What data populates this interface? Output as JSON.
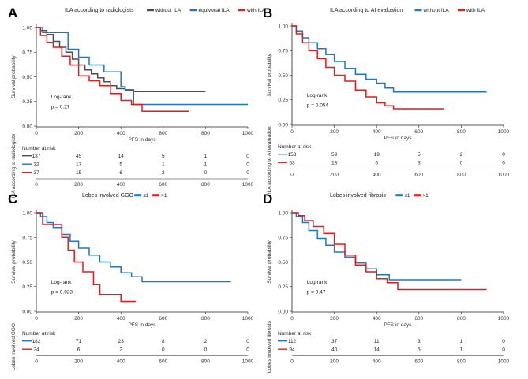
{
  "colors": {
    "gray": "#4d4d4d",
    "blue": "#1f77c4",
    "red": "#e41a1c",
    "axis": "#222222"
  },
  "chart_data": [
    {
      "panel": "A",
      "type": "line",
      "title": "ILA according to radiologists",
      "legend_position": "top",
      "xlabel": "PFS in days",
      "ylabel": "Survival probability",
      "xlim": [
        0,
        1000
      ],
      "ylim": [
        0,
        1
      ],
      "xticks": [
        "0",
        "200",
        "400",
        "600",
        "800",
        "1000"
      ],
      "yticks": [
        "0.00",
        "0.25",
        "0.50",
        "0.75",
        "1.00"
      ],
      "annotations": [
        "Log-rank",
        "p = 0.27"
      ],
      "series": [
        {
          "name": "without ILA",
          "color": "#4d4d4d",
          "x": [
            0,
            20,
            50,
            80,
            110,
            140,
            170,
            200,
            230,
            260,
            290,
            320,
            350,
            380,
            420,
            460,
            520,
            600,
            700,
            800
          ],
          "y": [
            1.0,
            0.97,
            0.93,
            0.86,
            0.8,
            0.75,
            0.68,
            0.62,
            0.57,
            0.53,
            0.49,
            0.45,
            0.41,
            0.38,
            0.36,
            0.35,
            0.35,
            0.35,
            0.35,
            0.35
          ]
        },
        {
          "name": "equivocal ILA",
          "color": "#1f77c4",
          "x": [
            0,
            30,
            60,
            120,
            150,
            200,
            250,
            320,
            400,
            420,
            460,
            600,
            800,
            1000
          ],
          "y": [
            1.0,
            0.95,
            0.95,
            0.95,
            0.78,
            0.7,
            0.62,
            0.55,
            0.4,
            0.37,
            0.22,
            0.22,
            0.22,
            0.22
          ]
        },
        {
          "name": "with ILA",
          "color": "#e41a1c",
          "x": [
            0,
            20,
            50,
            80,
            120,
            160,
            200,
            250,
            300,
            350,
            400,
            450,
            500,
            600,
            720
          ],
          "y": [
            1.0,
            0.92,
            0.85,
            0.8,
            0.71,
            0.62,
            0.51,
            0.46,
            0.41,
            0.33,
            0.26,
            0.22,
            0.15,
            0.15,
            0.15
          ]
        }
      ],
      "risk_table": {
        "title": "Number at risk",
        "ylabel": "ILA according to radiologists",
        "times": [
          "0",
          "200",
          "400",
          "600",
          "800",
          "1000"
        ],
        "rows": [
          {
            "color": "#4d4d4d",
            "values": [
              "137",
              "45",
              "14",
              "5",
              "1",
              "0"
            ]
          },
          {
            "color": "#1f77c4",
            "values": [
              "32",
              "17",
              "5",
              "1",
              "1",
              "0"
            ]
          },
          {
            "color": "#e41a1c",
            "values": [
              "37",
              "15",
              "6",
              "2",
              "0",
              "0"
            ]
          }
        ]
      }
    },
    {
      "panel": "B",
      "type": "line",
      "title": "ILA according to AI evaluation",
      "legend_position": "top",
      "xlabel": "PFS in days",
      "ylabel": "Survival probability",
      "xlim": [
        0,
        1000
      ],
      "ylim": [
        0,
        1
      ],
      "xticks": [
        "0",
        "200",
        "400",
        "600",
        "800",
        "1000"
      ],
      "yticks": [
        "0.00",
        "0.25",
        "0.50",
        "0.75",
        "1.00"
      ],
      "annotations": [
        "Log-rank",
        "p = 0.054"
      ],
      "series": [
        {
          "name": "without ILA",
          "color": "#1f77c4",
          "x": [
            0,
            20,
            50,
            80,
            120,
            160,
            200,
            250,
            300,
            350,
            400,
            440,
            480,
            600,
            800,
            920
          ],
          "y": [
            1.0,
            0.95,
            0.88,
            0.83,
            0.77,
            0.71,
            0.64,
            0.57,
            0.51,
            0.46,
            0.42,
            0.37,
            0.33,
            0.33,
            0.33,
            0.33
          ]
        },
        {
          "name": "with ILA",
          "color": "#e41a1c",
          "x": [
            0,
            20,
            50,
            80,
            120,
            160,
            200,
            250,
            300,
            350,
            400,
            440,
            480,
            600,
            720
          ],
          "y": [
            1.0,
            0.92,
            0.83,
            0.75,
            0.67,
            0.58,
            0.5,
            0.44,
            0.35,
            0.28,
            0.22,
            0.19,
            0.16,
            0.16,
            0.16
          ]
        }
      ],
      "risk_table": {
        "title": "Number at risk",
        "ylabel": "ILA according to AI evaluation",
        "times": [
          "0",
          "200",
          "400",
          "600",
          "800",
          "1000"
        ],
        "rows": [
          {
            "color": "#1f77c4",
            "values": [
              "153",
              "59",
              "19",
              "5",
              "2",
              "0"
            ]
          },
          {
            "color": "#e41a1c",
            "values": [
              "53",
              "18",
              "6",
              "3",
              "0",
              "0"
            ]
          }
        ]
      }
    },
    {
      "panel": "C",
      "type": "line",
      "title": "Lobes involved GGO",
      "legend_position": "top",
      "xlabel": "PFS in days",
      "ylabel": "Survival probability",
      "xlim": [
        0,
        1000
      ],
      "ylim": [
        0,
        1
      ],
      "xticks": [
        "0",
        "200",
        "400",
        "600",
        "800",
        "1000"
      ],
      "yticks": [
        "0.00",
        "0.25",
        "0.50",
        "0.75",
        "1.00"
      ],
      "annotations": [
        "Log-rank",
        "p = 0.023"
      ],
      "series": [
        {
          "name": "≤1",
          "color": "#1f77c4",
          "x": [
            0,
            20,
            50,
            80,
            120,
            160,
            200,
            250,
            300,
            350,
            400,
            450,
            500,
            600,
            800,
            920
          ],
          "y": [
            1.0,
            0.96,
            0.9,
            0.85,
            0.78,
            0.71,
            0.64,
            0.57,
            0.5,
            0.45,
            0.39,
            0.35,
            0.3,
            0.3,
            0.3,
            0.3
          ]
        },
        {
          "name": ">1",
          "color": "#e41a1c",
          "x": [
            0,
            30,
            60,
            120,
            150,
            180,
            220,
            270,
            300,
            400,
            470
          ],
          "y": [
            1.0,
            0.88,
            0.88,
            0.75,
            0.62,
            0.5,
            0.4,
            0.27,
            0.17,
            0.1,
            0.1
          ]
        }
      ],
      "risk_table": {
        "title": "Number at risk",
        "ylabel": "Lobes involved GGO",
        "times": [
          "0",
          "200",
          "400",
          "600",
          "800",
          "1000"
        ],
        "rows": [
          {
            "color": "#1f77c4",
            "values": [
              "182",
              "71",
              "23",
              "8",
              "2",
              "0"
            ]
          },
          {
            "color": "#e41a1c",
            "values": [
              "24",
              "6",
              "2",
              "0",
              "0",
              "0"
            ]
          }
        ]
      }
    },
    {
      "panel": "D",
      "type": "line",
      "title": "Lobes involved fibrosis",
      "legend_position": "top",
      "xlabel": "PFS in days",
      "ylabel": "Survival probability",
      "xlim": [
        0,
        1000
      ],
      "ylim": [
        0,
        1
      ],
      "xticks": [
        "0",
        "200",
        "400",
        "600",
        "800",
        "1000"
      ],
      "yticks": [
        "0.00",
        "0.25",
        "0.50",
        "0.75",
        "1.00"
      ],
      "annotations": [
        "Log-rank",
        "p = 0.47"
      ],
      "series": [
        {
          "name": "≤1",
          "color": "#1f77c4",
          "x": [
            0,
            20,
            50,
            80,
            120,
            160,
            200,
            250,
            300,
            350,
            400,
            460,
            600,
            800
          ],
          "y": [
            1.0,
            0.96,
            0.9,
            0.82,
            0.74,
            0.67,
            0.6,
            0.55,
            0.49,
            0.43,
            0.37,
            0.32,
            0.32,
            0.32
          ]
        },
        {
          "name": ">1",
          "color": "#e41a1c",
          "x": [
            0,
            30,
            60,
            100,
            150,
            200,
            250,
            300,
            350,
            400,
            450,
            500,
            600,
            800,
            920
          ],
          "y": [
            1.0,
            0.97,
            0.92,
            0.86,
            0.79,
            0.68,
            0.57,
            0.47,
            0.4,
            0.33,
            0.29,
            0.22,
            0.22,
            0.22,
            0.22
          ]
        }
      ],
      "risk_table": {
        "title": "Number at risk",
        "ylabel": "Lobes involved fibrosis",
        "times": [
          "0",
          "200",
          "400",
          "600",
          "800",
          "1000"
        ],
        "rows": [
          {
            "color": "#1f77c4",
            "values": [
              "112",
              "37",
              "11",
              "3",
              "1",
              "0"
            ]
          },
          {
            "color": "#e41a1c",
            "values": [
              "94",
              "40",
              "14",
              "5",
              "1",
              "0"
            ]
          }
        ]
      }
    }
  ]
}
